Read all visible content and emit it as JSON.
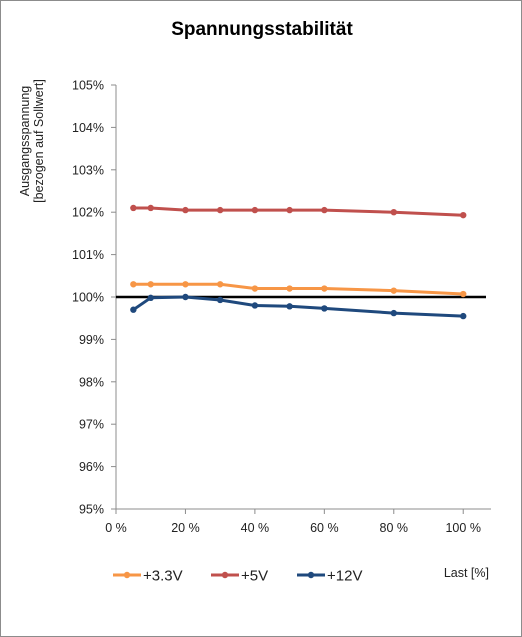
{
  "chart_data": {
    "type": "line",
    "title": "Spannungsstabilität",
    "ylabel_lines": [
      "Ausgangsspannung",
      "[bezogen auf Sollwert]"
    ],
    "xlabel": "Last [%]",
    "xlim": [
      0,
      108
    ],
    "ylim": [
      95,
      105
    ],
    "y_ticks": [
      95,
      96,
      97,
      98,
      99,
      100,
      101,
      102,
      103,
      104,
      105
    ],
    "y_tick_labels": [
      "95%",
      "96%",
      "97%",
      "98%",
      "99%",
      "100%",
      "101%",
      "102%",
      "103%",
      "104%",
      "105%"
    ],
    "x_ticks": [
      0,
      20,
      40,
      60,
      80,
      100
    ],
    "x_tick_labels": [
      "0 %",
      "20 %",
      "40 %",
      "60 %",
      "80 %",
      "100 %"
    ],
    "grid": false,
    "reference_line": {
      "y": 100,
      "x_range": [
        0,
        108
      ],
      "color": "#000000"
    },
    "x": [
      5,
      10,
      20,
      30,
      40,
      50,
      60,
      80,
      100
    ],
    "series": [
      {
        "name": "+3.3V",
        "color": "#f79646",
        "values": [
          100.3,
          100.3,
          100.3,
          100.3,
          100.2,
          100.2,
          100.2,
          100.15,
          100.07
        ]
      },
      {
        "name": "+5V",
        "color": "#c0504d",
        "values": [
          102.1,
          102.1,
          102.05,
          102.05,
          102.05,
          102.05,
          102.05,
          102.0,
          101.93
        ]
      },
      {
        "name": "+12V",
        "color": "#1f497d",
        "values": [
          99.7,
          99.98,
          100.0,
          99.93,
          99.8,
          99.78,
          99.73,
          99.62,
          99.55
        ]
      }
    ],
    "legend_position": "bottom"
  }
}
